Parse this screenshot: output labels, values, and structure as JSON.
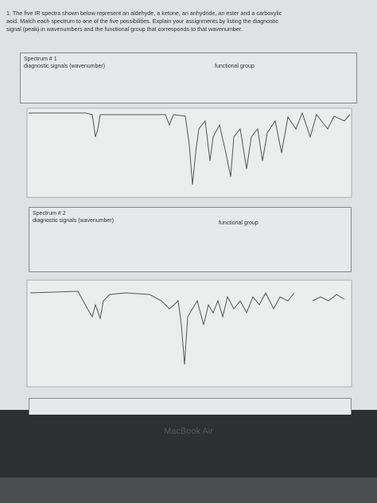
{
  "question": [
    "1. The five IR spectra shown below represent an aldehyde, a ketone, an anhydride, an ester and a carboxylic",
    "acid. Match each spectrum to one of the five possibilities. Explain your assignments by listing the diagnostic",
    "signal (peak) in wavenumbers and the functional group that corresponds to that wavenumber."
  ],
  "spectra": [
    {
      "title": "Spectrum # 1",
      "signals_label": "diagnostic signals (wavenumber)",
      "group_label": "functional group"
    },
    {
      "title": "Spectrum # 2",
      "signals_label": "diagnostic signals (wavenumber)",
      "group_label": "functional group"
    }
  ],
  "device_label": "MacBook Air"
}
